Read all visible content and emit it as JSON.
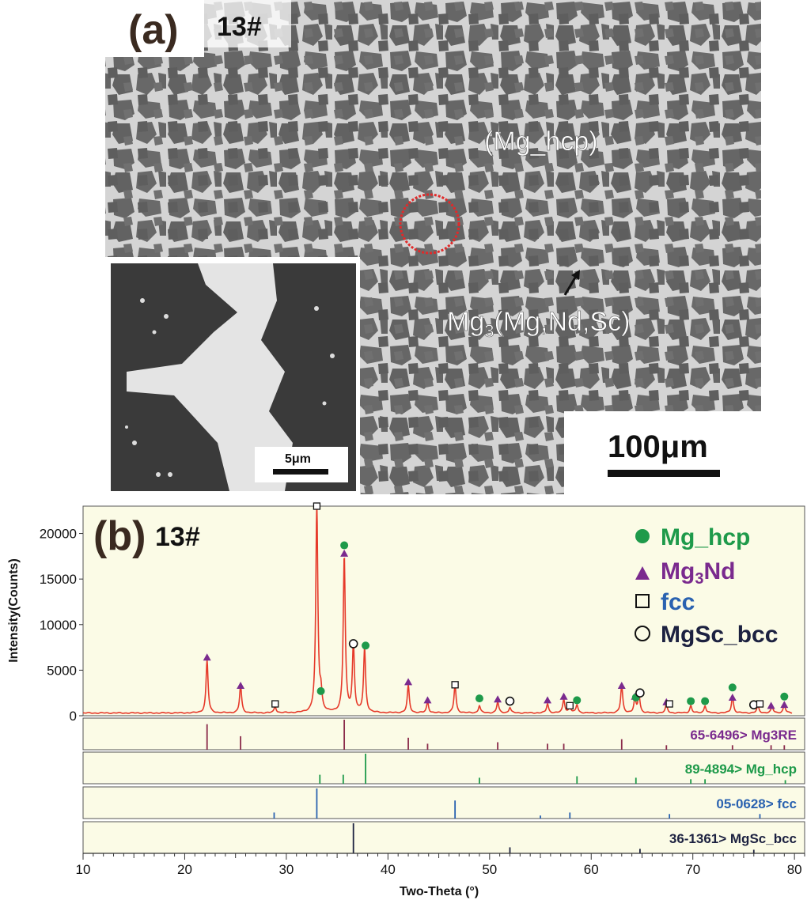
{
  "panel_a": {
    "panel_label": "(a)",
    "sample_label": "13#",
    "phase_label_1": "(Mg_hcp)",
    "phase_label_2_main": "Mg",
    "phase_label_2_sub": "3",
    "phase_label_2_rest": "(Mg,Nd,Sc)",
    "scale_bar_main": "100μm",
    "scale_bar_inset": "5μm"
  },
  "chart_data": {
    "type": "line",
    "panel_label": "(b)",
    "sample_label": "13#",
    "xlabel": "Two-Theta (°)",
    "ylabel": "Intensity(Counts)",
    "xlim": [
      10,
      81
    ],
    "ylim": [
      0,
      23000
    ],
    "x_ticks": [
      10,
      20,
      30,
      40,
      50,
      60,
      70,
      80
    ],
    "y_ticks": [
      0,
      5000,
      10000,
      15000,
      20000
    ],
    "legend": [
      {
        "name": "Mg_hcp",
        "marker": "filled-circle",
        "color": "#1e9a4a"
      },
      {
        "name_main": "Mg",
        "name_sub": "3",
        "name_rest": "Nd",
        "marker": "filled-triangle",
        "color": "#7a2a8e"
      },
      {
        "name": "fcc",
        "marker": "open-square",
        "color": "#2a62b0"
      },
      {
        "name": "MgSc_bcc",
        "marker": "open-circle",
        "color": "#1c2140"
      }
    ],
    "legend_position": "top-right",
    "line_color": "#e63a2a",
    "baseline": 300,
    "peaks": [
      {
        "x": 22.2,
        "y": 5800
      },
      {
        "x": 25.5,
        "y": 3000
      },
      {
        "x": 28.9,
        "y": 700
      },
      {
        "x": 33.0,
        "y": 22800
      },
      {
        "x": 33.4,
        "y": 1900
      },
      {
        "x": 35.7,
        "y": 17200
      },
      {
        "x": 36.6,
        "y": 7500
      },
      {
        "x": 37.7,
        "y": 7000
      },
      {
        "x": 42.0,
        "y": 3000
      },
      {
        "x": 43.9,
        "y": 1200
      },
      {
        "x": 46.6,
        "y": 3100
      },
      {
        "x": 49.0,
        "y": 800
      },
      {
        "x": 50.8,
        "y": 1200
      },
      {
        "x": 52.0,
        "y": 600
      },
      {
        "x": 55.7,
        "y": 1000
      },
      {
        "x": 57.3,
        "y": 1500
      },
      {
        "x": 57.9,
        "y": 700
      },
      {
        "x": 58.6,
        "y": 900
      },
      {
        "x": 63.0,
        "y": 3000
      },
      {
        "x": 64.3,
        "y": 1500
      },
      {
        "x": 64.7,
        "y": 2000
      },
      {
        "x": 67.4,
        "y": 900
      },
      {
        "x": 69.8,
        "y": 800
      },
      {
        "x": 71.2,
        "y": 800
      },
      {
        "x": 73.9,
        "y": 1800
      },
      {
        "x": 76.4,
        "y": 800
      },
      {
        "x": 77.8,
        "y": 700
      },
      {
        "x": 79.0,
        "y": 900
      }
    ],
    "markers": [
      {
        "phase": "triangle",
        "x": 22.2,
        "y": 6400
      },
      {
        "phase": "triangle",
        "x": 25.5,
        "y": 3300
      },
      {
        "phase": "square",
        "x": 28.9,
        "y": 1300
      },
      {
        "phase": "square",
        "x": 33.0,
        "y": 23000
      },
      {
        "phase": "circle",
        "x": 33.4,
        "y": 2700
      },
      {
        "phase": "circle",
        "x": 35.7,
        "y": 18700
      },
      {
        "phase": "triangle",
        "x": 35.7,
        "y": 17800
      },
      {
        "phase": "open-circle",
        "x": 36.6,
        "y": 7900
      },
      {
        "phase": "circle",
        "x": 37.8,
        "y": 7700
      },
      {
        "phase": "triangle",
        "x": 42.0,
        "y": 3700
      },
      {
        "phase": "triangle",
        "x": 43.9,
        "y": 1700
      },
      {
        "phase": "square",
        "x": 46.6,
        "y": 3400
      },
      {
        "phase": "circle",
        "x": 49.0,
        "y": 1900
      },
      {
        "phase": "triangle",
        "x": 50.8,
        "y": 1800
      },
      {
        "phase": "open-circle",
        "x": 52.0,
        "y": 1600
      },
      {
        "phase": "triangle",
        "x": 55.7,
        "y": 1700
      },
      {
        "phase": "triangle",
        "x": 57.3,
        "y": 2100
      },
      {
        "phase": "square",
        "x": 57.9,
        "y": 1100
      },
      {
        "phase": "circle",
        "x": 58.6,
        "y": 1700
      },
      {
        "phase": "triangle",
        "x": 63.0,
        "y": 3300
      },
      {
        "phase": "triangle",
        "x": 64.3,
        "y": 2100
      },
      {
        "phase": "circle",
        "x": 64.4,
        "y": 2000
      },
      {
        "phase": "open-circle",
        "x": 64.8,
        "y": 2500
      },
      {
        "phase": "triangle",
        "x": 67.4,
        "y": 1500
      },
      {
        "phase": "square",
        "x": 67.7,
        "y": 1300
      },
      {
        "phase": "circle",
        "x": 69.8,
        "y": 1600
      },
      {
        "phase": "circle",
        "x": 71.2,
        "y": 1600
      },
      {
        "phase": "circle",
        "x": 73.9,
        "y": 3100
      },
      {
        "phase": "triangle",
        "x": 73.9,
        "y": 2000
      },
      {
        "phase": "open-circle",
        "x": 76.0,
        "y": 1200
      },
      {
        "phase": "square",
        "x": 76.6,
        "y": 1300
      },
      {
        "phase": "triangle",
        "x": 77.7,
        "y": 1100
      },
      {
        "phase": "circle",
        "x": 79.0,
        "y": 2100
      },
      {
        "phase": "triangle",
        "x": 79.0,
        "y": 1200
      }
    ],
    "references": [
      {
        "label": "65-6496> Mg3RE",
        "color": "#8a2a4a",
        "text_color": "#7a2a8e",
        "lines": [
          {
            "x": 22.2,
            "h": 0.85
          },
          {
            "x": 25.5,
            "h": 0.45
          },
          {
            "x": 35.7,
            "h": 1.0
          },
          {
            "x": 42.0,
            "h": 0.4
          },
          {
            "x": 43.9,
            "h": 0.2
          },
          {
            "x": 50.8,
            "h": 0.25
          },
          {
            "x": 55.7,
            "h": 0.2
          },
          {
            "x": 57.3,
            "h": 0.2
          },
          {
            "x": 63.0,
            "h": 0.35
          },
          {
            "x": 67.4,
            "h": 0.15
          },
          {
            "x": 73.9,
            "h": 0.15
          },
          {
            "x": 77.7,
            "h": 0.15
          },
          {
            "x": 79.0,
            "h": 0.15
          }
        ]
      },
      {
        "label": "89-4894> Mg_hcp",
        "color": "#1e9a4a",
        "text_color": "#1e9a4a",
        "lines": [
          {
            "x": 33.3,
            "h": 0.3
          },
          {
            "x": 35.6,
            "h": 0.3
          },
          {
            "x": 37.8,
            "h": 1.0
          },
          {
            "x": 49.0,
            "h": 0.2
          },
          {
            "x": 58.6,
            "h": 0.25
          },
          {
            "x": 64.4,
            "h": 0.2
          },
          {
            "x": 69.8,
            "h": 0.15
          },
          {
            "x": 71.2,
            "h": 0.15
          },
          {
            "x": 79.1,
            "h": 0.12
          }
        ]
      },
      {
        "label": "05-0628> fcc",
        "color": "#2a62b0",
        "text_color": "#2a62b0",
        "lines": [
          {
            "x": 28.8,
            "h": 0.2
          },
          {
            "x": 33.0,
            "h": 1.0
          },
          {
            "x": 46.6,
            "h": 0.6
          },
          {
            "x": 55.0,
            "h": 0.1
          },
          {
            "x": 57.9,
            "h": 0.2
          },
          {
            "x": 67.7,
            "h": 0.15
          },
          {
            "x": 76.6,
            "h": 0.15
          }
        ]
      },
      {
        "label": "36-1361> MgSc_bcc",
        "color": "#1c2140",
        "text_color": "#1c2140",
        "lines": [
          {
            "x": 36.6,
            "h": 1.0
          },
          {
            "x": 52.0,
            "h": 0.2
          },
          {
            "x": 64.8,
            "h": 0.15
          },
          {
            "x": 76.0,
            "h": 0.12
          }
        ]
      }
    ]
  }
}
